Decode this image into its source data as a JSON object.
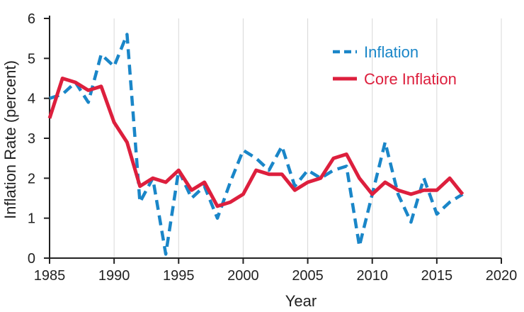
{
  "chart_data": {
    "type": "line",
    "title": "",
    "xlabel": "Year",
    "ylabel": "Inflation Rate (percent)",
    "xlim": [
      1985,
      2020
    ],
    "ylim": [
      0,
      6
    ],
    "xticks": [
      1985,
      1990,
      1995,
      2000,
      2005,
      2010,
      2015,
      2020
    ],
    "yticks": [
      0,
      1,
      2,
      3,
      4,
      5,
      6
    ],
    "grid": "vertical",
    "legend_position": "top-right",
    "x": [
      1985,
      1986,
      1987,
      1988,
      1989,
      1990,
      1991,
      1992,
      1993,
      1994,
      1995,
      1996,
      1997,
      1998,
      1999,
      2000,
      2001,
      2002,
      2003,
      2004,
      2005,
      2006,
      2007,
      2008,
      2009,
      2010,
      2011,
      2012,
      2013,
      2014,
      2015,
      2016,
      2017
    ],
    "series": [
      {
        "name": "Inflation",
        "color": "#1a86c8",
        "style": "dashed",
        "values": [
          4.0,
          4.1,
          4.4,
          3.9,
          5.1,
          4.8,
          5.6,
          1.4,
          2.0,
          0.1,
          2.2,
          1.5,
          1.8,
          1.0,
          1.9,
          2.7,
          2.5,
          2.2,
          2.8,
          1.8,
          2.2,
          2.0,
          2.2,
          2.3,
          0.3,
          1.6,
          2.9,
          1.6,
          0.9,
          2.0,
          1.1,
          1.4,
          1.6
        ]
      },
      {
        "name": "Core Inflation",
        "color": "#dd1f3d",
        "style": "solid",
        "values": [
          3.5,
          4.5,
          4.4,
          4.2,
          4.3,
          3.4,
          2.9,
          1.8,
          2.0,
          1.9,
          2.2,
          1.7,
          1.9,
          1.3,
          1.4,
          1.6,
          2.2,
          2.1,
          2.1,
          1.7,
          1.9,
          2.0,
          2.5,
          2.6,
          2.0,
          1.6,
          1.9,
          1.7,
          1.6,
          1.7,
          1.7,
          2.0,
          1.6
        ]
      }
    ]
  }
}
